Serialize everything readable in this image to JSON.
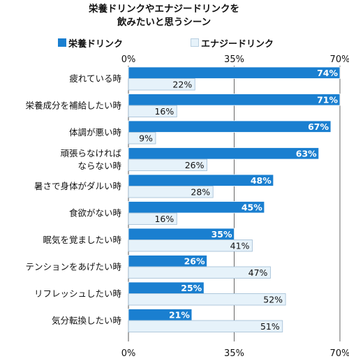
{
  "chart_data": {
    "type": "bar",
    "orientation": "horizontal",
    "title": [
      "栄養ドリンクやエナジードリンクを",
      "飲みたいと思うシーン"
    ],
    "categories": [
      "疲れている時",
      "栄養成分を補給したい時",
      "体調が悪い時",
      "頑張らなければ\nならない時",
      "暑さで身体がダルい時",
      "食欲がない時",
      "眠気を覚ましたい時",
      "テンションをあげたい時",
      "リフレッシュしたい時",
      "気分転換したい時"
    ],
    "series": [
      {
        "name": "栄養ドリンク",
        "color": "#1a7fd0",
        "values": [
          74,
          71,
          67,
          63,
          48,
          45,
          35,
          26,
          25,
          21
        ]
      },
      {
        "name": "エナジードリンク",
        "color": "#e6f2fa",
        "values": [
          22,
          16,
          9,
          26,
          28,
          16,
          41,
          47,
          52,
          51
        ]
      }
    ],
    "value_labels": [
      [
        "74%",
        "71%",
        "67%",
        "63%",
        "48%",
        "45%",
        "35%",
        "26%",
        "25%",
        "21%"
      ],
      [
        "22%",
        "16%",
        "9%",
        "26%",
        "28%",
        "16%",
        "41%",
        "47%",
        "52%",
        "51%"
      ]
    ],
    "xlim": [
      0,
      70
    ],
    "xticks": [
      0,
      35,
      70
    ],
    "xtick_labels": [
      "0%",
      "35%",
      "70%"
    ],
    "tick_labels_top_and_bottom": true,
    "legend_position": "top",
    "grid": "vertical lines at ticks"
  }
}
